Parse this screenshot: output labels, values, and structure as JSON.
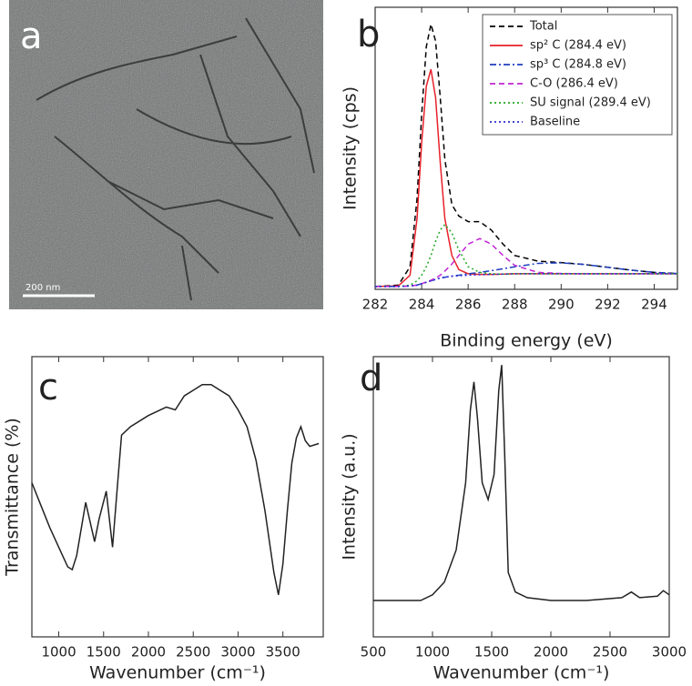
{
  "image_panel": {
    "panel_label": "a",
    "scale_bar": "200 nm"
  },
  "chart_data": [
    {
      "type": "line",
      "panel_label": "b",
      "x_label": "Binding energy (eV)",
      "y_label": "Intensity (cps)",
      "xlim": [
        282,
        295
      ],
      "xticks": [
        282,
        284,
        286,
        288,
        290,
        292,
        294
      ],
      "ylim": [
        0,
        100
      ],
      "legend": "upper right",
      "x": [
        282,
        283,
        283.5,
        283.8,
        284,
        284.2,
        284.4,
        284.6,
        284.8,
        285,
        285.3,
        285.6,
        286,
        286.5,
        287,
        287.5,
        288,
        289,
        290,
        291,
        292,
        293,
        294,
        295
      ],
      "series": [
        {
          "name": "Total",
          "color": "#000000",
          "dash": "dashed",
          "values": [
            1,
            1.5,
            8,
            32,
            62,
            86,
            94,
            88,
            68,
            46,
            30,
            26,
            24,
            24,
            21,
            16,
            12,
            10,
            9.5,
            8.8,
            7.8,
            6.8,
            6,
            5.6
          ]
        },
        {
          "name": "sp² C (284.4 eV)",
          "color": "#e8202a",
          "dash": "solid",
          "values": [
            1,
            1.2,
            5,
            25,
            52,
            72,
            78,
            68,
            45,
            25,
            12,
            7,
            5.5,
            5.3,
            5.3,
            5.4,
            5.5,
            5.5,
            5.5,
            5.5,
            5.5,
            5.5,
            5.5,
            5.5
          ]
        },
        {
          "name": "sp³ C (284.8 eV)",
          "color": "#1f3fbf",
          "dash": "dashdot",
          "values": [
            1,
            1,
            1.2,
            1.5,
            2,
            2.5,
            3,
            3.5,
            4,
            4.3,
            4.7,
            5,
            5.5,
            6,
            6.6,
            7.3,
            8,
            9.2,
            9.4,
            8.8,
            7.8,
            6.8,
            6,
            5.6
          ]
        },
        {
          "name": "C-O (286.4 eV)",
          "color": "#c026d3",
          "dash": "dashed",
          "values": [
            1,
            1,
            1.2,
            1.5,
            2,
            2.6,
            3.2,
            4,
            5,
            6.5,
            9,
            12,
            16,
            18,
            16,
            12,
            8.5,
            6,
            5.6,
            5.5,
            5.5,
            5.5,
            5.5,
            5.5
          ]
        },
        {
          "name": "SU signal (289.4 eV)",
          "color": "#22a622",
          "dash": "dotted",
          "values": [
            1,
            1,
            1.5,
            3,
            5,
            8,
            12,
            17,
            21,
            23,
            20,
            14,
            8,
            6,
            5.5,
            5.4,
            5.5,
            5.5,
            5.5,
            5.5,
            5.5,
            5.5,
            5.5,
            5.5
          ]
        },
        {
          "name": "Baseline",
          "color": "#2b2bd6",
          "dash": "dotted",
          "values": [
            1,
            1,
            1.2,
            1.5,
            2,
            2.5,
            3,
            3.5,
            4,
            4.3,
            4.6,
            4.8,
            5,
            5.2,
            5.3,
            5.4,
            5.5,
            5.5,
            5.5,
            5.5,
            5.5,
            5.5,
            5.5,
            5.5
          ]
        }
      ]
    },
    {
      "type": "line",
      "panel_label": "c",
      "x_label": "Wavenumber (cm⁻¹)",
      "y_label": "Transmittance (%)",
      "xlim": [
        700,
        3950
      ],
      "xticks": [
        1000,
        1500,
        2000,
        2500,
        3000,
        3500
      ],
      "ylim": [
        0,
        100
      ],
      "x": [
        700,
        800,
        900,
        1000,
        1100,
        1150,
        1200,
        1300,
        1400,
        1450,
        1530,
        1600,
        1650,
        1700,
        1800,
        2000,
        2200,
        2300,
        2400,
        2500,
        2600,
        2700,
        2800,
        2900,
        3000,
        3100,
        3200,
        3300,
        3400,
        3450,
        3500,
        3550,
        3600,
        3650,
        3700,
        3750,
        3800,
        3900
      ],
      "series": [
        {
          "color": "#222222",
          "dash": "solid",
          "values": [
            55,
            47,
            39,
            32,
            25,
            24,
            29,
            48,
            34,
            42,
            52,
            32,
            52,
            72,
            75,
            79,
            82,
            81,
            86,
            88,
            90,
            90,
            88,
            86,
            81,
            75,
            63,
            45,
            23,
            15,
            26,
            45,
            62,
            71,
            75,
            70,
            68,
            69
          ]
        }
      ]
    },
    {
      "type": "line",
      "panel_label": "d",
      "x_label": "Wavenumber (cm⁻¹)",
      "y_label": "Intensity (a.u.)",
      "xlim": [
        500,
        3000
      ],
      "xticks": [
        500,
        1000,
        1500,
        2000,
        2500,
        3000
      ],
      "ylim": [
        0,
        100
      ],
      "x": [
        500,
        700,
        900,
        1000,
        1100,
        1200,
        1280,
        1320,
        1350,
        1380,
        1420,
        1470,
        1520,
        1560,
        1585,
        1610,
        1640,
        1700,
        1800,
        2000,
        2300,
        2600,
        2680,
        2750,
        2900,
        2950,
        3000
      ],
      "series": [
        {
          "color": "#222222",
          "dash": "solid",
          "values": [
            13,
            13,
            13,
            15,
            19.5,
            31,
            55,
            81,
            91,
            78,
            55,
            49,
            58,
            88,
            97,
            65,
            23,
            16,
            14,
            13,
            13,
            14,
            16,
            14,
            14.5,
            16.5,
            15
          ]
        }
      ]
    }
  ]
}
